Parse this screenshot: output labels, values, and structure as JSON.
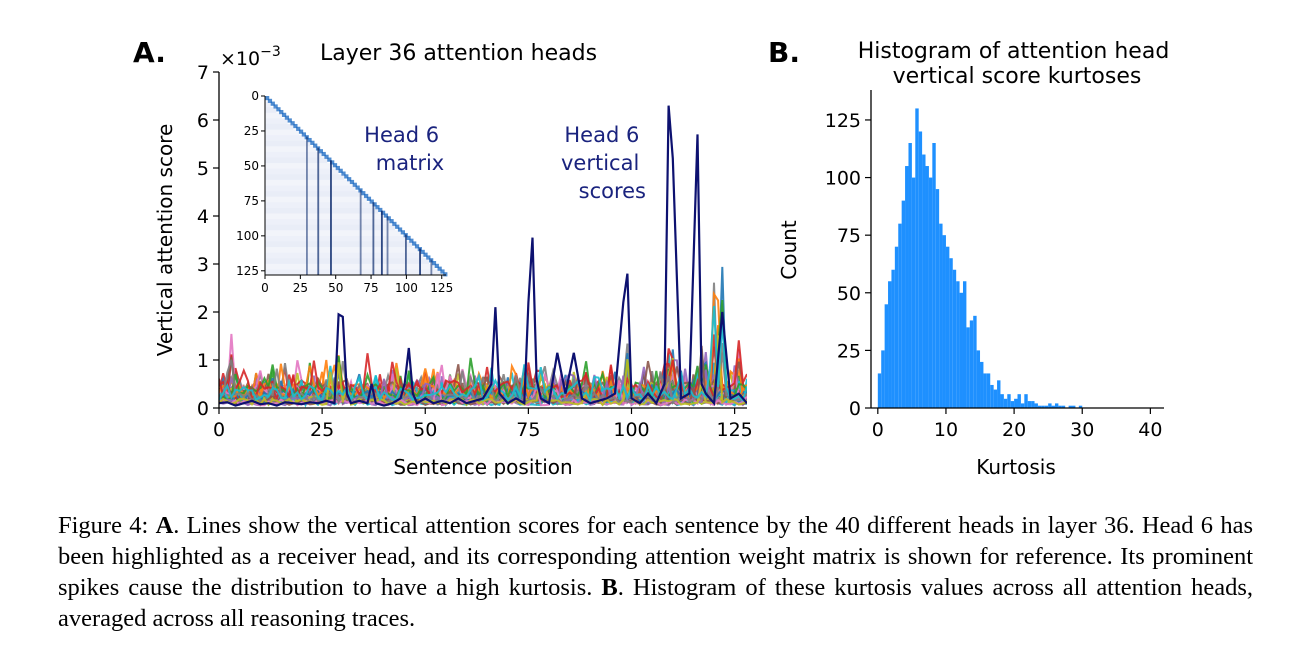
{
  "panel_a": {
    "letter": "A.",
    "title": "Layer 36 attention heads",
    "scale_text": "×10",
    "scale_exp": "−3",
    "ylabel": "Vertical attention score",
    "xlabel": "Sentence position",
    "annot_matrix": [
      "Head 6",
      "matrix"
    ],
    "annot_vertical": [
      "Head 6",
      "vertical",
      "scores"
    ]
  },
  "panel_b": {
    "letter": "B.",
    "title_lines": [
      "Histogram of attention head",
      "vertical score kurtoses"
    ],
    "ylabel": "Count",
    "xlabel": "Kurtosis"
  },
  "caption": {
    "a_label": "A",
    "a_text": ". Lines show the vertical attention scores for each sentence by the 40 different heads in layer 36. Head 6 has been highlighted as a receiver head, and its corresponding attention weight matrix is shown for reference. Its prominent spikes cause the distribution to have a high kurtosis. ",
    "b_label": "B",
    "b_text": ". Histogram of these kurtosis values across all attention heads, averaged across all reasoning traces.",
    "prefix": "Figure 4: "
  },
  "colors": {
    "highlight": "#0d1170",
    "histogram": "#1e90ff",
    "annot": "#1a237e",
    "palette": [
      "#1f77b4",
      "#ff7f0e",
      "#2ca02c",
      "#d62728",
      "#9467bd",
      "#8c564b",
      "#e377c2",
      "#7f7f7f",
      "#bcbd22",
      "#17becf"
    ]
  },
  "chart_data": [
    {
      "type": "line",
      "title": "Layer 36 attention heads",
      "xlabel": "Sentence position",
      "ylabel": "Vertical attention score",
      "y_scale_note": "×10^-3",
      "xlim": [
        0,
        128
      ],
      "ylim": [
        0,
        7
      ],
      "xticks": [
        0,
        25,
        50,
        75,
        100,
        125
      ],
      "yticks": [
        0,
        1,
        2,
        3,
        4,
        5,
        6,
        7
      ],
      "highlight_series": {
        "x": [
          0,
          2,
          4,
          6,
          8,
          10,
          12,
          14,
          16,
          18,
          20,
          22,
          24,
          26,
          28,
          29,
          30,
          31,
          32,
          34,
          36,
          37,
          38,
          40,
          42,
          44,
          45,
          46,
          47,
          48,
          50,
          52,
          54,
          56,
          58,
          60,
          62,
          64,
          66,
          67,
          68,
          70,
          72,
          74,
          75,
          76,
          77,
          78,
          80,
          82,
          84,
          86,
          88,
          90,
          92,
          94,
          96,
          98,
          99,
          100,
          102,
          104,
          106,
          108,
          109,
          110,
          112,
          114,
          116,
          117,
          118,
          120,
          122,
          124,
          126,
          128
        ],
        "y": [
          0.1,
          0.12,
          0.05,
          0.1,
          0.15,
          0.08,
          0.1,
          0.05,
          0.12,
          0.1,
          0.08,
          0.12,
          0.1,
          0.15,
          0.1,
          1.95,
          1.9,
          0.3,
          0.1,
          0.15,
          0.1,
          0.5,
          0.1,
          0.05,
          0.1,
          0.2,
          0.5,
          1.25,
          0.3,
          0.1,
          0.2,
          0.1,
          0.15,
          0.1,
          0.2,
          0.1,
          0.15,
          0.2,
          0.5,
          2.1,
          0.3,
          0.1,
          0.2,
          0.1,
          2.2,
          3.55,
          0.6,
          0.2,
          0.1,
          1.15,
          0.3,
          1.15,
          0.2,
          0.1,
          0.15,
          0.2,
          0.3,
          2.2,
          2.8,
          0.2,
          0.1,
          0.3,
          0.1,
          0.5,
          6.3,
          5.2,
          0.2,
          0.3,
          5.7,
          0.5,
          0.3,
          0.1,
          2.0,
          0.2,
          0.3,
          0.1
        ]
      },
      "series_count": 40,
      "annotations": [
        "Head 6 matrix",
        "Head 6 vertical scores"
      ]
    },
    {
      "type": "heatmap",
      "title": "Head 6 matrix",
      "xticks": [
        0,
        25,
        50,
        75,
        100,
        125
      ],
      "yticks": [
        0,
        25,
        50,
        75,
        100,
        125
      ],
      "shape": "lower-triangular",
      "strong_columns": [
        29,
        37,
        46,
        67,
        76,
        82,
        86,
        99,
        109,
        117
      ]
    },
    {
      "type": "bar",
      "title": "Histogram of attention head vertical score kurtoses",
      "xlabel": "Kurtosis",
      "ylabel": "Count",
      "xlim": [
        -1,
        42
      ],
      "ylim": [
        0,
        138
      ],
      "xticks": [
        0,
        10,
        20,
        30,
        40
      ],
      "yticks": [
        0,
        25,
        50,
        75,
        100,
        125
      ],
      "bin_width": 0.5,
      "bin_start": 0,
      "values": [
        15,
        25,
        45,
        55,
        60,
        70,
        80,
        90,
        105,
        115,
        100,
        130,
        120,
        110,
        105,
        100,
        115,
        95,
        80,
        75,
        70,
        65,
        60,
        55,
        50,
        55,
        35,
        38,
        40,
        25,
        20,
        15,
        15,
        10,
        8,
        12,
        6,
        4,
        6,
        3,
        4,
        6,
        2,
        6,
        3,
        3,
        2,
        1,
        1,
        1,
        2,
        1,
        2,
        1,
        1,
        0,
        1,
        1,
        0,
        1,
        0,
        0,
        0,
        0,
        0,
        0,
        0,
        0,
        0,
        0
      ]
    }
  ]
}
